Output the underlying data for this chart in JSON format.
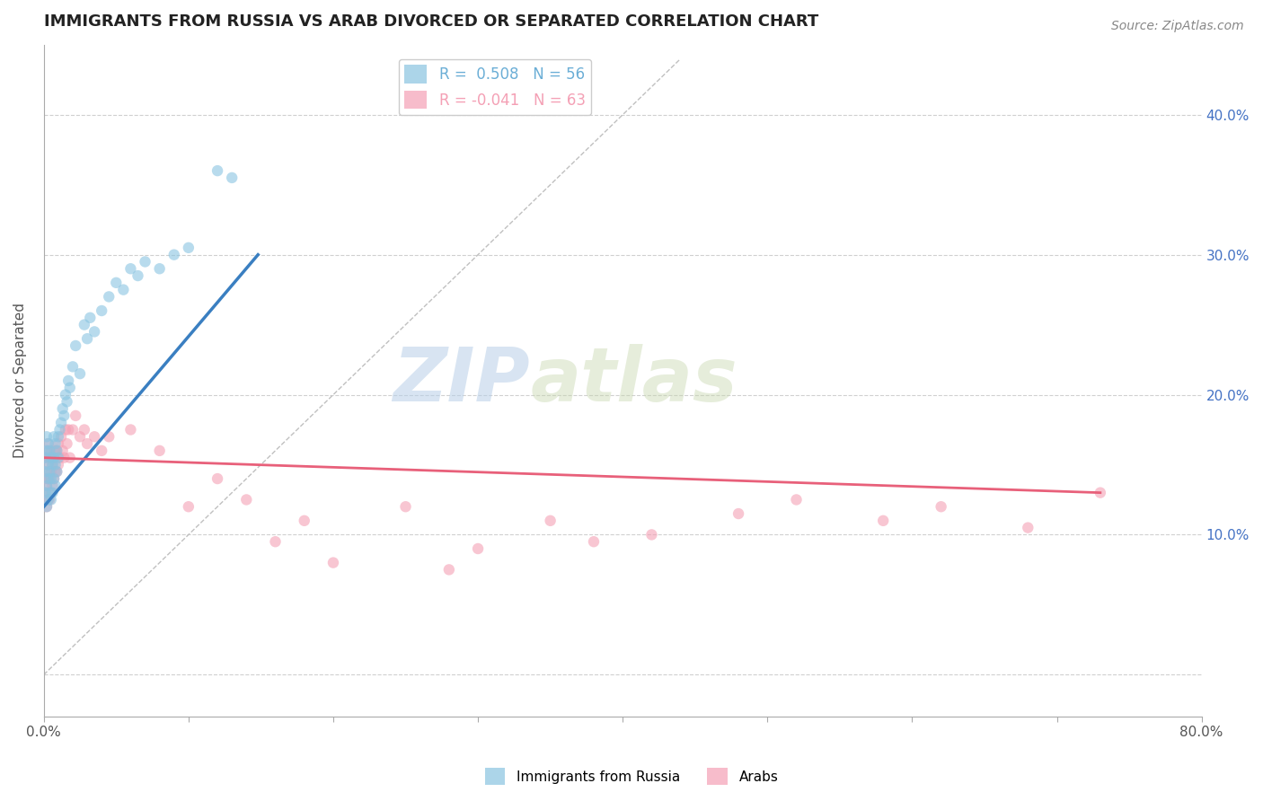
{
  "title": "IMMIGRANTS FROM RUSSIA VS ARAB DIVORCED OR SEPARATED CORRELATION CHART",
  "source": "Source: ZipAtlas.com",
  "ylabel": "Divorced or Separated",
  "xlim": [
    0,
    0.8
  ],
  "ylim": [
    -0.03,
    0.45
  ],
  "xticks": [
    0.0,
    0.1,
    0.2,
    0.3,
    0.4,
    0.5,
    0.6,
    0.7,
    0.8
  ],
  "xticklabels": [
    "0.0%",
    "",
    "",
    "",
    "",
    "",
    "",
    "",
    "80.0%"
  ],
  "yticks": [
    0.0,
    0.1,
    0.2,
    0.3,
    0.4
  ],
  "yticklabels_right": [
    "",
    "10.0%",
    "20.0%",
    "30.0%",
    "40.0%"
  ],
  "legend_entries": [
    {
      "label": "R =  0.508   N = 56",
      "color": "#6baed6"
    },
    {
      "label": "R = -0.041   N = 63",
      "color": "#f4a0b5"
    }
  ],
  "russia_scatter_x": [
    0.001,
    0.001,
    0.001,
    0.002,
    0.002,
    0.002,
    0.002,
    0.003,
    0.003,
    0.003,
    0.003,
    0.004,
    0.004,
    0.004,
    0.005,
    0.005,
    0.005,
    0.006,
    0.006,
    0.007,
    0.007,
    0.007,
    0.008,
    0.008,
    0.008,
    0.009,
    0.009,
    0.01,
    0.01,
    0.011,
    0.012,
    0.013,
    0.014,
    0.015,
    0.016,
    0.017,
    0.018,
    0.02,
    0.022,
    0.025,
    0.028,
    0.03,
    0.032,
    0.035,
    0.04,
    0.045,
    0.05,
    0.055,
    0.06,
    0.065,
    0.07,
    0.08,
    0.09,
    0.1,
    0.12,
    0.13
  ],
  "russia_scatter_y": [
    0.13,
    0.145,
    0.155,
    0.12,
    0.135,
    0.16,
    0.17,
    0.125,
    0.14,
    0.15,
    0.165,
    0.13,
    0.145,
    0.16,
    0.125,
    0.14,
    0.155,
    0.13,
    0.15,
    0.14,
    0.155,
    0.17,
    0.135,
    0.15,
    0.165,
    0.145,
    0.16,
    0.155,
    0.17,
    0.175,
    0.18,
    0.19,
    0.185,
    0.2,
    0.195,
    0.21,
    0.205,
    0.22,
    0.235,
    0.215,
    0.25,
    0.24,
    0.255,
    0.245,
    0.26,
    0.27,
    0.28,
    0.275,
    0.29,
    0.285,
    0.295,
    0.29,
    0.3,
    0.305,
    0.36,
    0.355
  ],
  "arab_scatter_x": [
    0.001,
    0.001,
    0.001,
    0.002,
    0.002,
    0.002,
    0.002,
    0.003,
    0.003,
    0.003,
    0.003,
    0.004,
    0.004,
    0.004,
    0.005,
    0.005,
    0.005,
    0.006,
    0.006,
    0.007,
    0.007,
    0.008,
    0.008,
    0.009,
    0.009,
    0.01,
    0.01,
    0.011,
    0.012,
    0.013,
    0.014,
    0.015,
    0.016,
    0.017,
    0.018,
    0.02,
    0.022,
    0.025,
    0.028,
    0.03,
    0.035,
    0.04,
    0.045,
    0.06,
    0.08,
    0.1,
    0.12,
    0.14,
    0.16,
    0.18,
    0.2,
    0.25,
    0.28,
    0.3,
    0.35,
    0.38,
    0.42,
    0.48,
    0.52,
    0.58,
    0.62,
    0.68,
    0.73
  ],
  "arab_scatter_y": [
    0.13,
    0.14,
    0.155,
    0.12,
    0.135,
    0.145,
    0.16,
    0.125,
    0.14,
    0.15,
    0.165,
    0.125,
    0.14,
    0.155,
    0.13,
    0.145,
    0.16,
    0.135,
    0.15,
    0.14,
    0.155,
    0.145,
    0.16,
    0.145,
    0.16,
    0.15,
    0.165,
    0.155,
    0.17,
    0.16,
    0.155,
    0.175,
    0.165,
    0.175,
    0.155,
    0.175,
    0.185,
    0.17,
    0.175,
    0.165,
    0.17,
    0.16,
    0.17,
    0.175,
    0.16,
    0.12,
    0.14,
    0.125,
    0.095,
    0.11,
    0.08,
    0.12,
    0.075,
    0.09,
    0.11,
    0.095,
    0.1,
    0.115,
    0.125,
    0.11,
    0.12,
    0.105,
    0.13
  ],
  "russia_line_x": [
    0.0,
    0.148
  ],
  "russia_line_y": [
    0.12,
    0.3
  ],
  "arab_line_x": [
    0.0,
    0.73
  ],
  "arab_line_y": [
    0.155,
    0.13
  ],
  "ref_line_x": [
    0.0,
    0.44
  ],
  "ref_line_y": [
    0.0,
    0.44
  ],
  "scatter_size": 80,
  "russia_color": "#89c4e1",
  "arab_color": "#f4a0b5",
  "russia_line_color": "#3a7fc1",
  "arab_line_color": "#e8607a",
  "ref_line_color": "#c0c0c0",
  "background_color": "#ffffff",
  "watermark_zip": "ZIP",
  "watermark_atlas": "atlas",
  "grid_color": "#d0d0d0"
}
